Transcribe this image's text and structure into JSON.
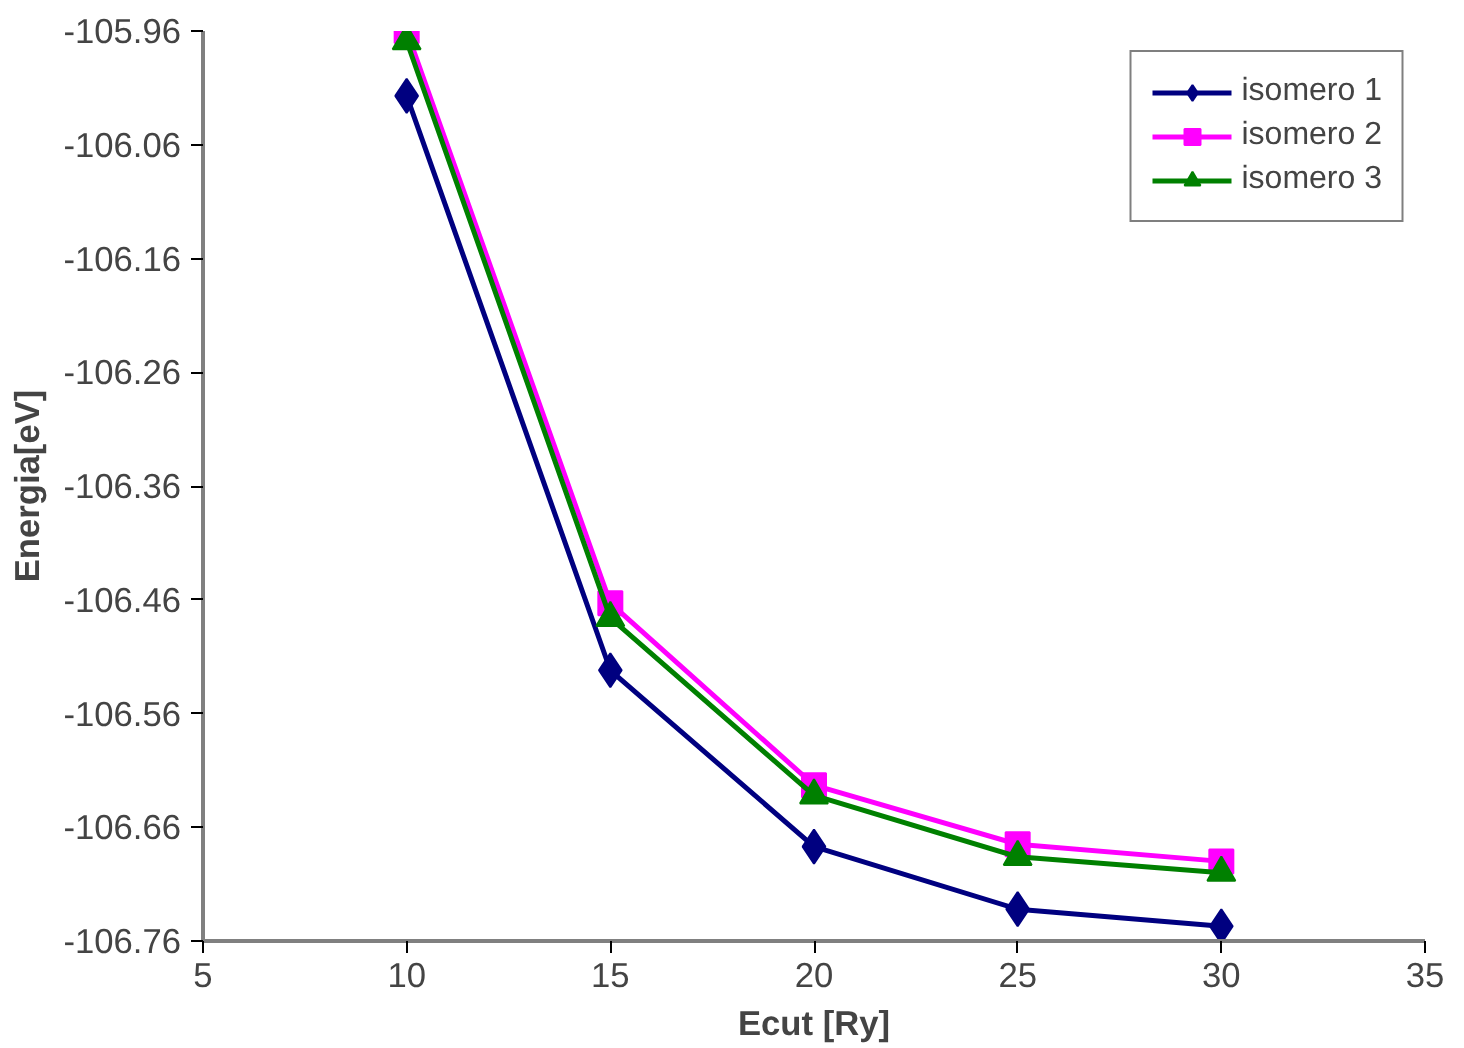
{
  "chart_data": {
    "type": "line",
    "xlabel": "Ecut [Ry]",
    "ylabel": "Energia[eV]",
    "x": [
      10,
      15,
      20,
      25,
      30
    ],
    "series": [
      {
        "name": "isomero 1",
        "color": "#000080",
        "marker": "diamond",
        "values": [
          -106.017,
          -106.522,
          -106.677,
          -106.732,
          -106.747
        ]
      },
      {
        "name": "isomero 2",
        "color": "#ff00ff",
        "marker": "square",
        "values": [
          -105.96,
          -106.463,
          -106.623,
          -106.675,
          -106.69
        ]
      },
      {
        "name": "isomero 3",
        "color": "#008000",
        "marker": "triangle",
        "values": [
          -105.969,
          -106.476,
          -106.632,
          -106.686,
          -106.7
        ]
      }
    ],
    "xlim": [
      5,
      35
    ],
    "xticks": [
      5,
      10,
      15,
      20,
      25,
      30,
      35
    ],
    "ylim": [
      -106.76,
      -105.96
    ],
    "yticks": [
      -105.96,
      -106.06,
      -106.16,
      -106.26,
      -106.36,
      -106.46,
      -106.56,
      -106.66,
      -106.76
    ],
    "grid": false,
    "legend": "top right",
    "line_style": "solid"
  }
}
